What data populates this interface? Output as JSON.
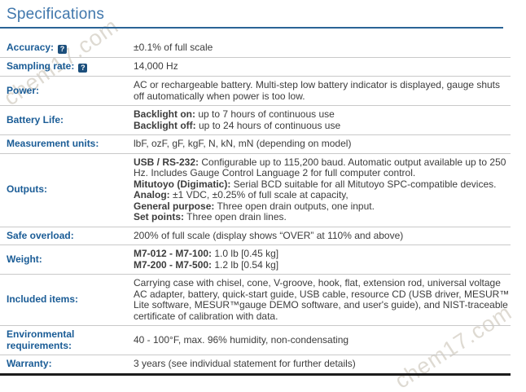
{
  "header": {
    "title": "Specifications"
  },
  "watermark": {
    "text": "chem17.com"
  },
  "icons": {
    "help_glyph": "?"
  },
  "colors": {
    "title_blue": "#4077ac",
    "rule_blue": "#2a6496",
    "label_blue": "#1a5c96",
    "value_gray": "#3c3c3c",
    "divider_gray": "#c9c9c9",
    "bottom_border": "#1c1c1c",
    "help_icon_bg": "#1c4f7c",
    "watermark_gray": "#d9d4cb"
  },
  "table": {
    "rows": [
      {
        "label": "Accuracy:",
        "help": true,
        "paragraphs": [
          [
            {
              "t": "±0.1% of full scale"
            }
          ]
        ]
      },
      {
        "label": "Sampling rate:",
        "help": true,
        "paragraphs": [
          [
            {
              "t": "14,000 Hz"
            }
          ]
        ]
      },
      {
        "label": "Power:",
        "help": false,
        "paragraphs": [
          [
            {
              "t": "AC or rechargeable battery. Multi-step low battery indicator is displayed, gauge shuts off automatically when power is too low."
            }
          ]
        ]
      },
      {
        "label": "Battery Life:",
        "help": false,
        "paragraphs": [
          [
            {
              "b": "Backlight on:"
            },
            {
              "t": " up to 7 hours of continuous use"
            }
          ],
          [
            {
              "b": "Backlight off:"
            },
            {
              "t": " up to 24 hours of continuous use"
            }
          ]
        ]
      },
      {
        "label": "Measurement units:",
        "help": false,
        "paragraphs": [
          [
            {
              "t": "lbF, ozF, gF, kgF, N, kN, mN (depending on model)"
            }
          ]
        ]
      },
      {
        "label": "Outputs:",
        "help": false,
        "paragraphs": [
          [
            {
              "b": "USB / RS-232:"
            },
            {
              "t": " Configurable up to 115,200 baud. Automatic output available up to 250 Hz. Includes Gauge Control Language 2 for full computer control."
            }
          ],
          [
            {
              "b": "Mitutoyo (Digimatic):"
            },
            {
              "t": " Serial BCD suitable for all Mitutoyo SPC-compatible devices."
            }
          ],
          [
            {
              "b": "Analog:"
            },
            {
              "t": " ±1 VDC, ±0.25% of full scale at capacity,"
            }
          ],
          [
            {
              "b": "General purpose:"
            },
            {
              "t": " Three open drain outputs, one input."
            }
          ],
          [
            {
              "b": "Set points:"
            },
            {
              "t": " Three open drain lines."
            }
          ]
        ]
      },
      {
        "label": "Safe overload:",
        "help": false,
        "paragraphs": [
          [
            {
              "t": "200% of full scale (display shows “OVER” at 110% and above)"
            }
          ]
        ]
      },
      {
        "label": "Weight:",
        "help": false,
        "paragraphs": [
          [
            {
              "b": "M7-012 - M7-100:"
            },
            {
              "t": " 1.0 lb [0.45 kg]"
            }
          ],
          [
            {
              "b": "M7-200 - M7-500:"
            },
            {
              "t": " 1.2 lb [0.54 kg]"
            }
          ]
        ]
      },
      {
        "label": "Included items:",
        "help": false,
        "paragraphs": [
          [
            {
              "t": "Carrying case with chisel, cone, V-groove, hook, flat, extension rod, universal voltage AC adapter, battery, quick-start guide, USB cable, resource CD (USB driver, MESUR™ Lite software, MESUR™gauge DEMO software, and user's guide), and NIST-traceable certificate of calibration with data."
            }
          ]
        ]
      },
      {
        "label": "Environmental requirements:",
        "help": false,
        "paragraphs": [
          [
            {
              "t": "40 - 100°F, max. 96% humidity, non-condensating"
            }
          ]
        ]
      },
      {
        "label": "Warranty:",
        "help": false,
        "paragraphs": [
          [
            {
              "t": "3 years (see individual statement for further details)"
            }
          ]
        ]
      }
    ]
  }
}
